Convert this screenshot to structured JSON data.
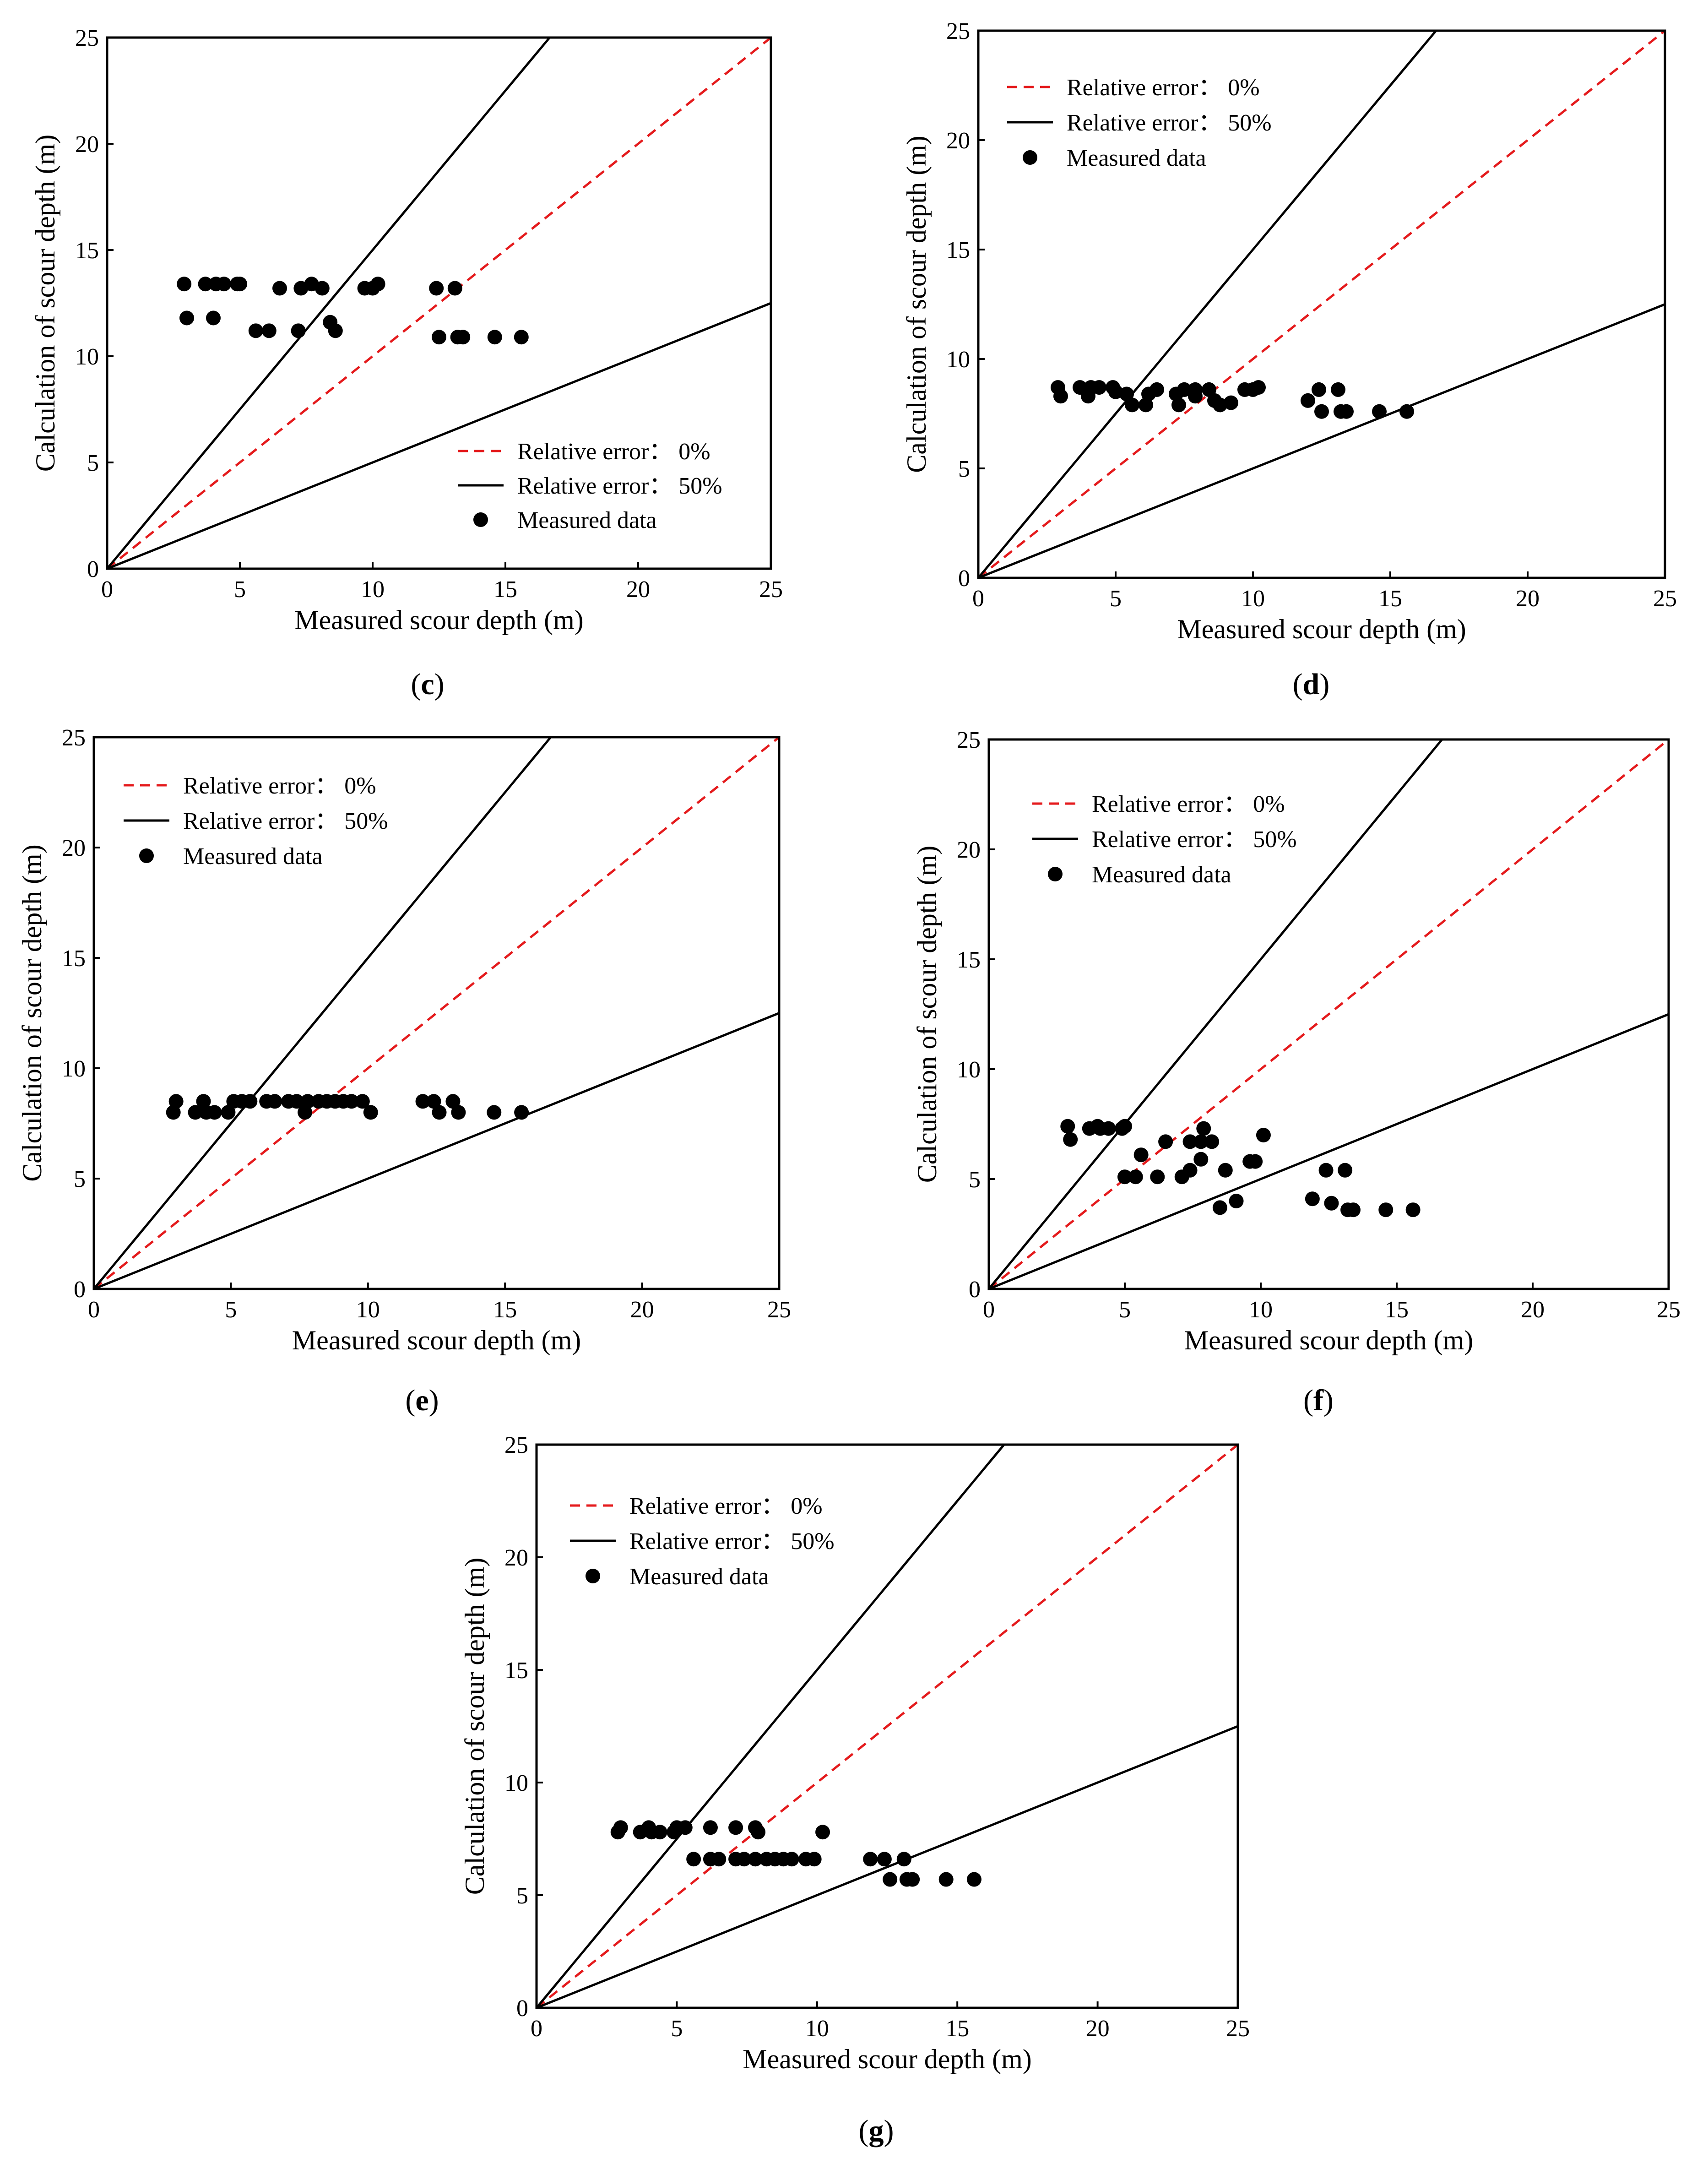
{
  "figure": {
    "panels": [
      "c",
      "d",
      "e",
      "f",
      "g"
    ]
  },
  "chart_data": [
    {
      "id": "c",
      "type": "scatter",
      "panel_label": "c",
      "xlabel": "Measured scour depth (m)",
      "ylabel": "Calculation of scour depth (m)",
      "xlim": [
        0,
        25
      ],
      "ylim": [
        0,
        25
      ],
      "xticks": [
        "0",
        "5",
        "10",
        "15",
        "20",
        "25"
      ],
      "yticks": [
        "0",
        "5",
        "10",
        "15",
        "20",
        "25"
      ],
      "legend_position": "bottom-right",
      "legend": {
        "zero": "Relative error： 0%",
        "fifty": "Relative error： 50%",
        "measured": "Measured data"
      },
      "lines": [
        {
          "name": "Relative error 0%",
          "slope": 1.0,
          "color": "#e41a1c",
          "style": "dashed"
        },
        {
          "name": "Relative error 50% upper",
          "slope": 1.5,
          "color": "#000000",
          "style": "solid"
        },
        {
          "name": "Relative error 50% lower",
          "slope": 0.5,
          "color": "#000000",
          "style": "solid"
        }
      ],
      "points": [
        [
          2.9,
          13.4
        ],
        [
          3.0,
          11.8
        ],
        [
          3.7,
          13.4
        ],
        [
          4.0,
          11.8
        ],
        [
          4.1,
          13.4
        ],
        [
          4.4,
          13.4
        ],
        [
          4.9,
          13.4
        ],
        [
          5.0,
          13.4
        ],
        [
          5.6,
          11.2
        ],
        [
          6.1,
          11.2
        ],
        [
          6.5,
          13.2
        ],
        [
          7.2,
          11.2
        ],
        [
          7.3,
          13.2
        ],
        [
          7.7,
          13.4
        ],
        [
          8.1,
          13.2
        ],
        [
          8.4,
          11.6
        ],
        [
          8.6,
          11.2
        ],
        [
          9.7,
          13.2
        ],
        [
          10.0,
          13.2
        ],
        [
          10.2,
          13.4
        ],
        [
          12.4,
          13.2
        ],
        [
          12.5,
          10.9
        ],
        [
          13.1,
          13.2
        ],
        [
          13.2,
          10.9
        ],
        [
          13.4,
          10.9
        ],
        [
          14.6,
          10.9
        ],
        [
          15.6,
          10.9
        ]
      ]
    },
    {
      "id": "d",
      "type": "scatter",
      "panel_label": "d",
      "xlabel": "Measured scour depth (m)",
      "ylabel": "Calculation of scour depth (m)",
      "xlim": [
        0,
        25
      ],
      "ylim": [
        0,
        25
      ],
      "xticks": [
        "0",
        "5",
        "10",
        "15",
        "20",
        "25"
      ],
      "yticks": [
        "0",
        "5",
        "10",
        "15",
        "20",
        "25"
      ],
      "legend_position": "top-left",
      "legend": {
        "zero": "Relative error： 0%",
        "fifty": "Relative error： 50%",
        "measured": "Measured data"
      },
      "lines": [
        {
          "name": "Relative error 0%",
          "slope": 1.0,
          "color": "#e41a1c",
          "style": "dashed"
        },
        {
          "name": "Relative error 50% upper",
          "slope": 1.5,
          "color": "#000000",
          "style": "solid"
        },
        {
          "name": "Relative error 50% lower",
          "slope": 0.5,
          "color": "#000000",
          "style": "solid"
        }
      ],
      "points": [
        [
          2.9,
          8.7
        ],
        [
          3.0,
          8.3
        ],
        [
          3.7,
          8.7
        ],
        [
          4.0,
          8.3
        ],
        [
          4.1,
          8.7
        ],
        [
          4.4,
          8.7
        ],
        [
          4.9,
          8.7
        ],
        [
          5.0,
          8.5
        ],
        [
          5.4,
          8.4
        ],
        [
          5.6,
          7.9
        ],
        [
          6.1,
          7.9
        ],
        [
          6.2,
          8.4
        ],
        [
          6.5,
          8.6
        ],
        [
          7.2,
          8.4
        ],
        [
          7.3,
          7.9
        ],
        [
          7.5,
          8.6
        ],
        [
          7.9,
          8.6
        ],
        [
          7.9,
          8.3
        ],
        [
          8.4,
          8.6
        ],
        [
          8.6,
          8.1
        ],
        [
          8.8,
          7.9
        ],
        [
          9.2,
          8.0
        ],
        [
          9.7,
          8.6
        ],
        [
          10.0,
          8.6
        ],
        [
          10.2,
          8.7
        ],
        [
          12.0,
          8.1
        ],
        [
          12.4,
          8.6
        ],
        [
          12.5,
          7.6
        ],
        [
          13.1,
          8.6
        ],
        [
          13.2,
          7.6
        ],
        [
          13.4,
          7.6
        ],
        [
          14.6,
          7.6
        ],
        [
          15.6,
          7.6
        ]
      ]
    },
    {
      "id": "e",
      "type": "scatter",
      "panel_label": "e",
      "xlabel": "Measured scour depth (m)",
      "ylabel": "Calculation of scour depth (m)",
      "xlim": [
        0,
        25
      ],
      "ylim": [
        0,
        25
      ],
      "xticks": [
        "0",
        "5",
        "10",
        "15",
        "20",
        "25"
      ],
      "yticks": [
        "0",
        "5",
        "10",
        "15",
        "20",
        "25"
      ],
      "legend_position": "top-left",
      "legend": {
        "zero": "Relative error： 0%",
        "fifty": "Relative error： 50%",
        "measured": "Measured data"
      },
      "lines": [
        {
          "name": "Relative error 0%",
          "slope": 1.0,
          "color": "#e41a1c",
          "style": "dashed"
        },
        {
          "name": "Relative error 50% upper",
          "slope": 1.5,
          "color": "#000000",
          "style": "solid"
        },
        {
          "name": "Relative error 50% lower",
          "slope": 0.5,
          "color": "#000000",
          "style": "solid"
        }
      ],
      "points": [
        [
          2.9,
          8.0
        ],
        [
          3.0,
          8.5
        ],
        [
          3.7,
          8.0
        ],
        [
          4.0,
          8.5
        ],
        [
          4.1,
          8.0
        ],
        [
          4.4,
          8.0
        ],
        [
          4.9,
          8.0
        ],
        [
          5.1,
          8.5
        ],
        [
          5.4,
          8.5
        ],
        [
          5.7,
          8.5
        ],
        [
          6.3,
          8.5
        ],
        [
          6.6,
          8.5
        ],
        [
          7.1,
          8.5
        ],
        [
          7.4,
          8.5
        ],
        [
          7.7,
          8.0
        ],
        [
          7.8,
          8.5
        ],
        [
          8.2,
          8.5
        ],
        [
          8.5,
          8.5
        ],
        [
          8.8,
          8.5
        ],
        [
          9.1,
          8.5
        ],
        [
          9.4,
          8.5
        ],
        [
          9.8,
          8.5
        ],
        [
          10.1,
          8.0
        ],
        [
          12.0,
          8.5
        ],
        [
          12.4,
          8.5
        ],
        [
          12.6,
          8.0
        ],
        [
          13.1,
          8.5
        ],
        [
          13.3,
          8.0
        ],
        [
          14.6,
          8.0
        ],
        [
          15.6,
          8.0
        ]
      ]
    },
    {
      "id": "f",
      "type": "scatter",
      "panel_label": "f",
      "xlabel": "Measured scour depth (m)",
      "ylabel": "Calculation of scour depth (m)",
      "xlim": [
        0,
        25
      ],
      "ylim": [
        0,
        25
      ],
      "xticks": [
        "0",
        "5",
        "10",
        "15",
        "20",
        "25"
      ],
      "yticks": [
        "0",
        "5",
        "10",
        "15",
        "20",
        "25"
      ],
      "legend_position": "top-left",
      "legend": {
        "zero": "Relative error： 0%",
        "fifty": "Relative error： 50%",
        "measured": "Measured data"
      },
      "lines": [
        {
          "name": "Relative error 0%",
          "slope": 1.0,
          "color": "#e41a1c",
          "style": "dashed"
        },
        {
          "name": "Relative error 50% upper",
          "slope": 1.5,
          "color": "#000000",
          "style": "solid"
        },
        {
          "name": "Relative error 50% lower",
          "slope": 0.5,
          "color": "#000000",
          "style": "solid"
        }
      ],
      "points": [
        [
          2.9,
          7.4
        ],
        [
          3.0,
          6.8
        ],
        [
          3.7,
          7.3
        ],
        [
          4.0,
          7.4
        ],
        [
          4.1,
          7.3
        ],
        [
          4.4,
          7.3
        ],
        [
          4.9,
          7.3
        ],
        [
          5.0,
          7.4
        ],
        [
          5.0,
          5.1
        ],
        [
          5.4,
          5.1
        ],
        [
          5.6,
          6.1
        ],
        [
          6.2,
          5.1
        ],
        [
          6.5,
          6.7
        ],
        [
          7.1,
          5.1
        ],
        [
          7.4,
          5.4
        ],
        [
          7.4,
          6.7
        ],
        [
          7.8,
          6.7
        ],
        [
          7.9,
          7.3
        ],
        [
          7.8,
          5.9
        ],
        [
          8.2,
          6.7
        ],
        [
          8.5,
          3.7
        ],
        [
          8.7,
          5.4
        ],
        [
          9.1,
          4.0
        ],
        [
          9.6,
          5.8
        ],
        [
          9.8,
          5.8
        ],
        [
          10.1,
          7.0
        ],
        [
          11.9,
          4.1
        ],
        [
          12.4,
          5.4
        ],
        [
          12.6,
          3.9
        ],
        [
          13.1,
          5.4
        ],
        [
          13.2,
          3.6
        ],
        [
          13.4,
          3.6
        ],
        [
          14.6,
          3.6
        ],
        [
          15.6,
          3.6
        ]
      ]
    },
    {
      "id": "g",
      "type": "scatter",
      "panel_label": "g",
      "xlabel": "Measured scour depth (m)",
      "ylabel": "Calculation of scour depth (m)",
      "xlim": [
        0,
        25
      ],
      "ylim": [
        0,
        25
      ],
      "xticks": [
        "0",
        "5",
        "10",
        "15",
        "20",
        "25"
      ],
      "yticks": [
        "0",
        "5",
        "10",
        "15",
        "20",
        "25"
      ],
      "legend_position": "top-left",
      "legend": {
        "zero": "Relative error： 0%",
        "fifty": "Relative error： 50%",
        "measured": "Measured data"
      },
      "lines": [
        {
          "name": "Relative error 0%",
          "slope": 1.0,
          "color": "#e41a1c",
          "style": "dashed"
        },
        {
          "name": "Relative error 50% upper",
          "slope": 1.5,
          "color": "#000000",
          "style": "solid"
        },
        {
          "name": "Relative error 50% lower",
          "slope": 0.5,
          "color": "#000000",
          "style": "solid"
        }
      ],
      "points": [
        [
          2.9,
          7.8
        ],
        [
          3.0,
          8.0
        ],
        [
          3.7,
          7.8
        ],
        [
          4.0,
          8.0
        ],
        [
          4.1,
          7.8
        ],
        [
          4.4,
          7.8
        ],
        [
          4.9,
          7.8
        ],
        [
          5.0,
          8.0
        ],
        [
          5.3,
          8.0
        ],
        [
          5.6,
          6.6
        ],
        [
          6.2,
          6.6
        ],
        [
          6.2,
          8.0
        ],
        [
          6.5,
          6.6
        ],
        [
          7.1,
          6.6
        ],
        [
          7.1,
          8.0
        ],
        [
          7.4,
          6.6
        ],
        [
          7.8,
          6.6
        ],
        [
          7.8,
          8.0
        ],
        [
          7.9,
          7.8
        ],
        [
          8.2,
          6.6
        ],
        [
          8.5,
          6.6
        ],
        [
          8.8,
          6.6
        ],
        [
          9.1,
          6.6
        ],
        [
          9.6,
          6.6
        ],
        [
          9.9,
          6.6
        ],
        [
          10.2,
          7.8
        ],
        [
          11.9,
          6.6
        ],
        [
          12.4,
          6.6
        ],
        [
          12.6,
          5.7
        ],
        [
          13.1,
          6.6
        ],
        [
          13.2,
          5.7
        ],
        [
          13.4,
          5.7
        ],
        [
          14.6,
          5.7
        ],
        [
          15.6,
          5.7
        ]
      ]
    }
  ]
}
